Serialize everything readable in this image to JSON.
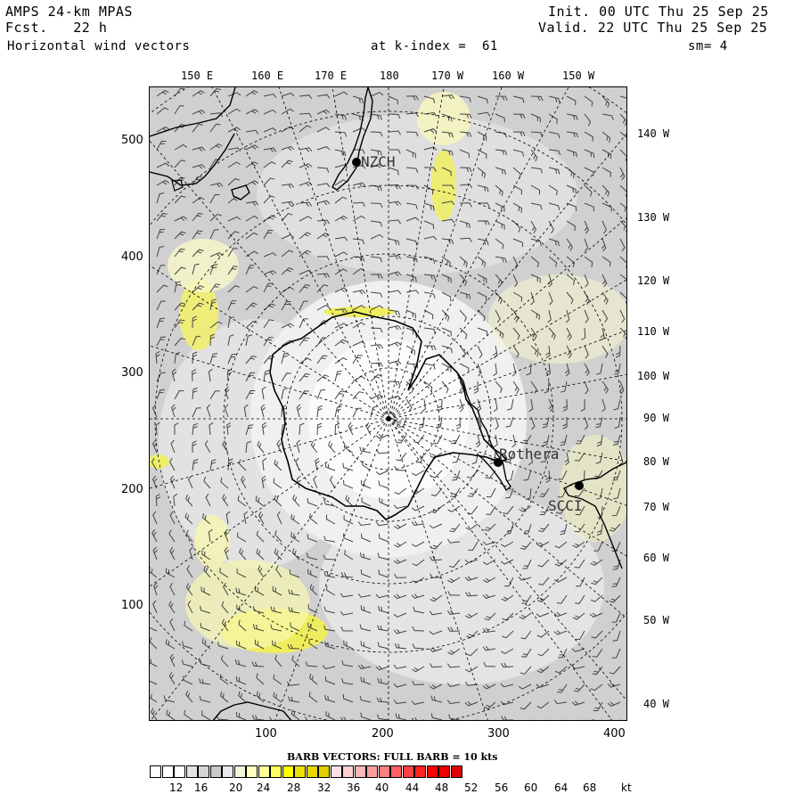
{
  "header": {
    "model": "AMPS 24-km MPAS",
    "forecast": "Fcst.   22 h",
    "field": "Horizontal wind vectors",
    "level": "at k-index =  61",
    "init": "Init. 00 UTC Thu 25 Sep 25",
    "valid": "Valid. 22 UTC Thu 25 Sep 25",
    "smoothing": "sm= 4"
  },
  "top_longitudes": [
    "150 E",
    "160 E",
    "170 E",
    "180",
    "170 W",
    "160 W",
    "150 W"
  ],
  "right_longitudes": [
    "140 W",
    "130 W",
    "120 W",
    "110 W",
    "100 W",
    "90 W",
    "80 W",
    "70 W",
    "60 W",
    "50 W",
    "40 W"
  ],
  "y_axis_ticks": [
    "500",
    "400",
    "300",
    "200",
    "100"
  ],
  "x_axis_ticks": [
    "100",
    "200",
    "300",
    "400"
  ],
  "stations": [
    {
      "id": "NZCH",
      "label": "NZCH"
    },
    {
      "id": "Rothera",
      "label": "Rothera"
    },
    {
      "id": "SCCI",
      "label": "SCCI"
    }
  ],
  "legend": {
    "title": "BARB VECTORS:  FULL BARB = 10 kts",
    "labels": [
      "12",
      "16",
      "20",
      "24",
      "28",
      "32",
      "36",
      "40",
      "44",
      "48",
      "52",
      "56",
      "60",
      "64",
      "68",
      "kt"
    ],
    "colors": [
      "#ffffff",
      "#ffffff",
      "#ffffff",
      "#e4e4e4",
      "#d4d4d4",
      "#c8c8c8",
      "#e8e8e8",
      "#f4f4d8",
      "#ffffc0",
      "#ffff98",
      "#ffff60",
      "#ffff00",
      "#f0e000",
      "#e8d800",
      "#e0d000",
      "#ffe0e0",
      "#ffd0d0",
      "#ffb8b8",
      "#ffa0a0",
      "#ff8080",
      "#ff6060",
      "#ff4040",
      "#ff2020",
      "#ff0000",
      "#ee0000",
      "#dd0000"
    ]
  },
  "colors": {
    "land_outline": "#000000",
    "grid": "#000000",
    "background_gray": "#d4d4d4",
    "yellow_high_speed": "#ffff00"
  }
}
